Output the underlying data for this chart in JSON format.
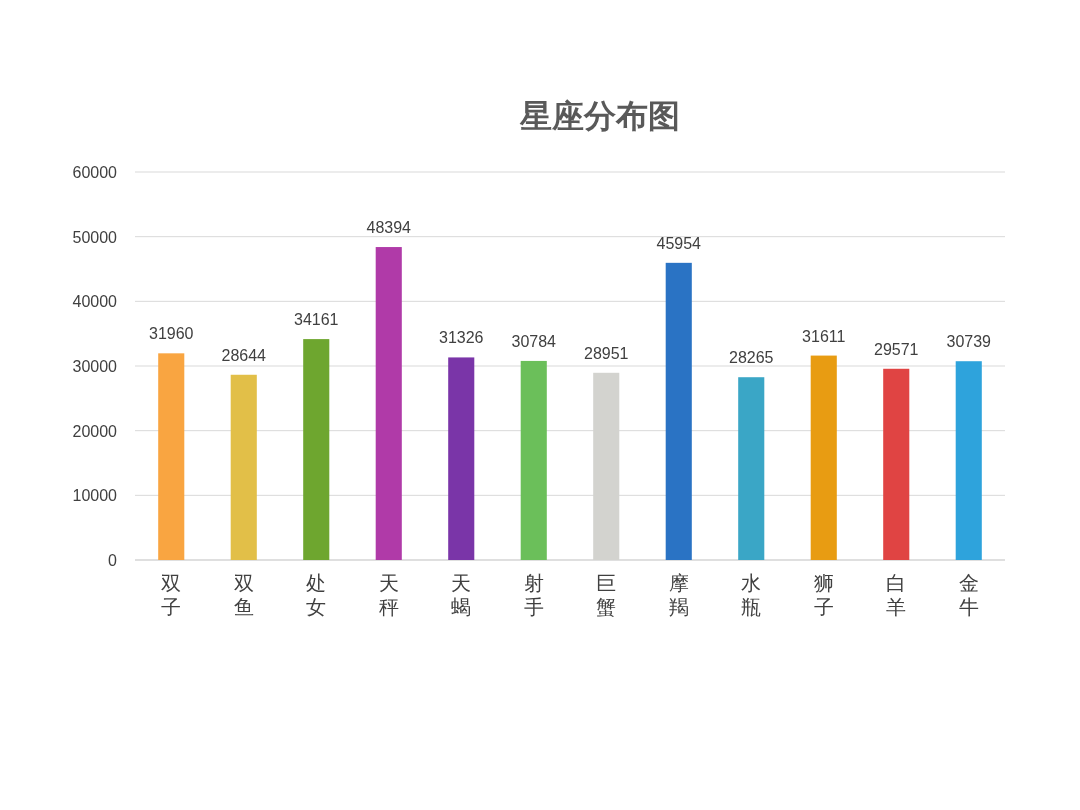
{
  "chart_data": {
    "type": "bar",
    "title": "星座分布图",
    "categories": [
      "双子",
      "双鱼",
      "处女",
      "天秤",
      "天蝎",
      "射手",
      "巨蟹",
      "摩羯",
      "水瓶",
      "狮子",
      "白羊",
      "金牛"
    ],
    "values": [
      31960,
      28644,
      34161,
      48394,
      31326,
      30784,
      28951,
      45954,
      28265,
      31611,
      29571,
      30739
    ],
    "colors": [
      "#f9a541",
      "#e2bf48",
      "#6ea62f",
      "#b03aa8",
      "#7a35a8",
      "#6bbf5a",
      "#d3d3cf",
      "#2a73c4",
      "#3aa6c6",
      "#e89c12",
      "#e04443",
      "#2ea3dc"
    ],
    "ylim": [
      0,
      60000
    ],
    "yticks": [
      0,
      10000,
      20000,
      30000,
      40000,
      50000,
      60000
    ],
    "grid": "y",
    "data_labels": true
  }
}
